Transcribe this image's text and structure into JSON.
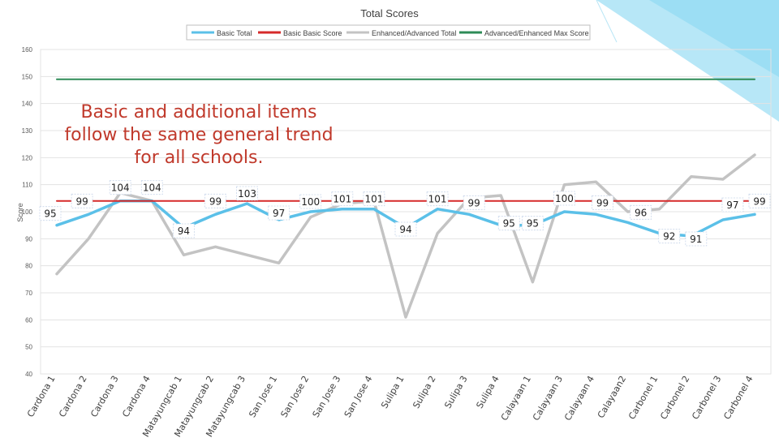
{
  "chart_data": {
    "type": "line",
    "title": "Total Scores",
    "ylabel": "Score",
    "xlabel": "",
    "ylim": [
      40,
      160
    ],
    "yticks": [
      40,
      50,
      60,
      70,
      80,
      90,
      100,
      110,
      120,
      130,
      140,
      150,
      160
    ],
    "grid": true,
    "legend_position": "top",
    "categories": [
      "Cardona 1",
      "Cardona 2",
      "Cardona 3",
      "Cardona 4",
      "Matayungcab 1",
      "Matayungcab 2",
      "Matayungcab 3",
      "San Jose 1",
      "San Jose 2",
      "San Jose 3",
      "San Jose 4",
      "Sulipa 1",
      "Sulipa 2",
      "Sulipa 3",
      "Sulipa 4",
      "Calayaan 1",
      "Calayaan 3",
      "Calayaan 4",
      "Calayaan2",
      "Carbonel 1",
      "Carbonel 2",
      "Carbonel 3",
      "Carbonel 4"
    ],
    "series": [
      {
        "name": "Basic Total",
        "color": "#5bc0e8",
        "values": [
          95,
          99,
          104,
          104,
          94,
          99,
          103,
          97,
          100,
          101,
          101,
          94,
          101,
          99,
          95,
          95,
          100,
          99,
          96,
          92,
          91,
          97,
          99
        ]
      },
      {
        "name": "Basic Basic Score",
        "color": "#d62a2a",
        "values": [
          104,
          104,
          104,
          104,
          104,
          104,
          104,
          104,
          104,
          104,
          104,
          104,
          104,
          104,
          104,
          104,
          104,
          104,
          104,
          104,
          104,
          104,
          104
        ]
      },
      {
        "name": "Enhanced/Advanced Total",
        "color": "#c3c3c3",
        "values": [
          77,
          90,
          107,
          104,
          84,
          87,
          84,
          81,
          98,
          103,
          104,
          61,
          92,
          105,
          106,
          74,
          110,
          111,
          100,
          101,
          113,
          112,
          121
        ]
      },
      {
        "name": "Advanced/Enhanced Max Score",
        "color": "#2e8b57",
        "values": [
          149,
          149,
          149,
          149,
          149,
          149,
          149,
          149,
          149,
          149,
          149,
          149,
          149,
          149,
          149,
          149,
          149,
          149,
          149,
          149,
          149,
          149,
          149
        ]
      }
    ],
    "data_labels": [
      95,
      99,
      104,
      104,
      94,
      99,
      103,
      97,
      100,
      101,
      101,
      94,
      101,
      99,
      95,
      95,
      100,
      99,
      96,
      92,
      91,
      97,
      99
    ],
    "annotation": "Basic and additional items follow the same general trend for all schools."
  },
  "colors": {
    "accent": "#7cd3f0",
    "annotation_text": "#c0392b",
    "grid": "#e3e3e3",
    "axis_text": "#595959"
  }
}
